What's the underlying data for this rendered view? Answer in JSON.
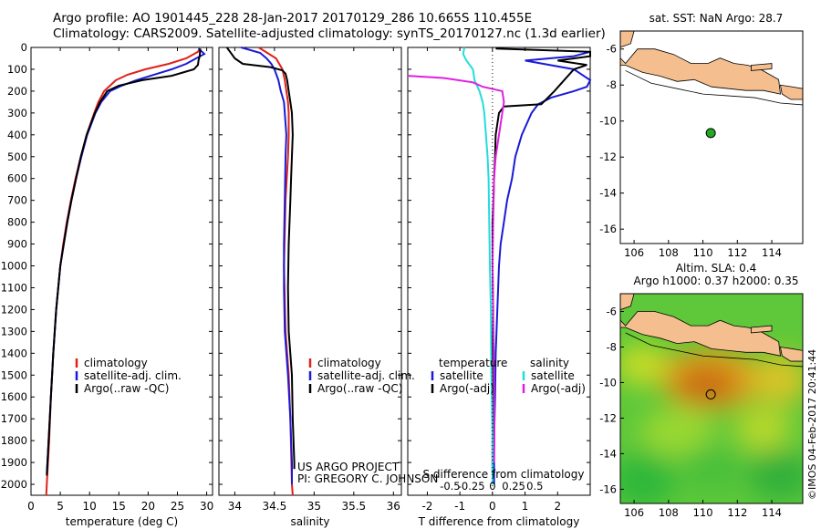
{
  "header": {
    "line1": "Argo profile: AO 1901445_228 28-Jan-2017 20170129_286 10.665S 110.455E",
    "line2": "Climatology: CARS2009. Satellite-adjusted climatology: synTS_20170127.nc (1.3d earlier)"
  },
  "watermark": "©IMOS 04-Feb-2017 20:41:44",
  "colors": {
    "climatology": "#e0201a",
    "satellite": "#1a1ad8",
    "argo": "#000000",
    "sal_sat": "#22dddd",
    "sal_argo": "#e020e0",
    "land": "#f5be8e"
  },
  "chart_data": [
    {
      "type": "line",
      "id": "temperature",
      "xlabel": "temperature (deg C)",
      "xlim": [
        0,
        31
      ],
      "ylim": [
        2050,
        0
      ],
      "x_ticks": [
        0,
        5,
        10,
        15,
        20,
        25,
        30
      ],
      "y_ticks": [
        0,
        100,
        200,
        300,
        400,
        500,
        600,
        700,
        800,
        900,
        1000,
        1100,
        1200,
        1300,
        1400,
        1500,
        1600,
        1700,
        1800,
        1900,
        2000
      ],
      "legend": [
        "climatology",
        "satellite-adj. clim.",
        "Argo(..raw -QC)"
      ],
      "series": [
        {
          "name": "climatology",
          "color": "#e0201a",
          "depth": [
            5,
            20,
            50,
            75,
            100,
            125,
            150,
            200,
            250,
            300,
            400,
            500,
            600,
            700,
            800,
            900,
            1000,
            1200,
            1400,
            1600,
            1800,
            2000,
            2050
          ],
          "values": [
            28.8,
            28.5,
            26.5,
            23.5,
            19.5,
            16.5,
            14.5,
            12.5,
            11.5,
            10.8,
            9.5,
            8.5,
            7.6,
            6.8,
            6.1,
            5.5,
            5.0,
            4.3,
            3.8,
            3.4,
            3.1,
            2.7,
            2.6
          ]
        },
        {
          "name": "satellite-adj. clim.",
          "color": "#1a1ad8",
          "depth": [
            5,
            30,
            50,
            75,
            100,
            125,
            150,
            175,
            200,
            250,
            300,
            400,
            500,
            600,
            700,
            800,
            900,
            1000,
            1200,
            1400,
            1600,
            1800,
            1950
          ],
          "values": [
            28.6,
            29.6,
            28.2,
            26.5,
            24.0,
            21.0,
            18.0,
            15.5,
            13.5,
            12.0,
            11.0,
            9.6,
            8.6,
            7.7,
            6.9,
            6.2,
            5.6,
            5.0,
            4.3,
            3.8,
            3.4,
            3.0,
            2.7
          ]
        },
        {
          "name": "Argo(..raw -QC)",
          "color": "#000000",
          "depth": [
            5,
            40,
            60,
            80,
            100,
            130,
            150,
            175,
            200,
            250,
            300,
            400,
            500,
            600,
            700,
            800,
            900,
            1000,
            1200,
            1400,
            1600,
            1800,
            1960
          ],
          "values": [
            28.9,
            28.8,
            28.6,
            28.5,
            27.8,
            24.0,
            19.0,
            15.0,
            13.0,
            11.8,
            10.9,
            9.5,
            8.5,
            7.7,
            6.9,
            6.2,
            5.6,
            5.0,
            4.3,
            3.8,
            3.4,
            3.0,
            2.7
          ]
        }
      ]
    },
    {
      "type": "line",
      "id": "salinity",
      "xlabel": "salinity",
      "xlim": [
        33.8,
        36.1
      ],
      "ylim": [
        2050,
        0
      ],
      "x_ticks": [
        34,
        34.5,
        35,
        35.5,
        36
      ],
      "legend": [
        "climatology",
        "satellite-adj. clim.",
        "Argo(..raw -QC)"
      ],
      "annotation": [
        "US ARGO PROJECT",
        "PI: GREGORY C. JOHNSON"
      ],
      "series": [
        {
          "name": "climatology",
          "color": "#e0201a",
          "depth": [
            0,
            50,
            100,
            150,
            200,
            250,
            300,
            400,
            500,
            700,
            1000,
            1300,
            1500,
            1700,
            2000,
            2050
          ],
          "values": [
            34.3,
            34.52,
            34.6,
            34.63,
            34.65,
            34.67,
            34.68,
            34.68,
            34.67,
            34.64,
            34.62,
            34.64,
            34.68,
            34.7,
            34.72,
            34.73
          ]
        },
        {
          "name": "satellite-adj. clim.",
          "color": "#1a1ad8",
          "depth": [
            0,
            25,
            50,
            75,
            100,
            150,
            200,
            250,
            300,
            400,
            500,
            700,
            900,
            1100,
            1300,
            1500,
            1700,
            1900,
            2000
          ],
          "values": [
            34.08,
            34.32,
            34.4,
            34.46,
            34.5,
            34.55,
            34.58,
            34.62,
            34.63,
            34.65,
            34.64,
            34.63,
            34.62,
            34.62,
            34.63,
            34.67,
            34.7,
            34.72,
            34.72
          ]
        },
        {
          "name": "Argo(..raw -QC)",
          "color": "#000000",
          "depth": [
            0,
            50,
            75,
            90,
            105,
            120,
            150,
            200,
            250,
            300,
            400,
            500,
            600,
            700,
            900,
            1100,
            1300,
            1500,
            1700,
            1900,
            1930
          ],
          "values": [
            33.9,
            34.0,
            34.1,
            34.45,
            34.6,
            34.64,
            34.66,
            34.68,
            34.7,
            34.72,
            34.73,
            34.72,
            34.71,
            34.7,
            34.68,
            34.67,
            34.68,
            34.72,
            34.73,
            34.75,
            34.75
          ]
        }
      ]
    },
    {
      "type": "line",
      "id": "difference",
      "xlabel": "T difference from climatology",
      "xlabel_top": "S difference from climatology",
      "xlim": [
        -2.6,
        3.0
      ],
      "ylim": [
        2050,
        0
      ],
      "x_ticks": [
        -2,
        -1,
        0,
        1,
        2
      ],
      "x_ticks_salinity": [
        "-0.5",
        "-0.25",
        "0",
        "0.25",
        "0.5"
      ],
      "legend_temperature": {
        "title": "temperature",
        "items": [
          "satellite",
          "Argo(-adj)"
        ]
      },
      "legend_salinity": {
        "title": "salinity",
        "items": [
          "satellite",
          "Argo(-adj)"
        ]
      },
      "series": [
        {
          "name": "T satellite",
          "color": "#1a1ad8",
          "depth": [
            20,
            40,
            60,
            100,
            150,
            180,
            200,
            230,
            260,
            300,
            400,
            500,
            600,
            700,
            800,
            900,
            1000,
            1200,
            1400,
            1600,
            1800,
            2000
          ],
          "values": [
            3.0,
            2.5,
            1.0,
            2.5,
            3.0,
            2.9,
            2.5,
            1.8,
            1.4,
            1.2,
            0.9,
            0.7,
            0.6,
            0.45,
            0.35,
            0.25,
            0.2,
            0.15,
            0.1,
            0.08,
            0.05,
            0.05
          ]
        },
        {
          "name": "T Argo(-adj)",
          "color": "#000000",
          "depth": [
            5,
            20,
            40,
            60,
            80,
            100,
            150,
            200,
            260,
            270,
            300,
            400,
            500,
            600,
            700,
            800,
            1000,
            1200,
            1400,
            1600,
            1800,
            1950
          ],
          "values": [
            0.1,
            3.0,
            3.0,
            2.0,
            2.9,
            2.5,
            2.2,
            1.9,
            1.5,
            0.35,
            0.2,
            0.1,
            0.08,
            0.05,
            0.03,
            0.0,
            0.0,
            0.02,
            0.0,
            0.02,
            0.0,
            0.0
          ]
        },
        {
          "name": "S satellite",
          "color": "#22dddd",
          "depth": [
            0,
            30,
            60,
            100,
            150,
            200,
            250,
            300,
            400,
            500,
            600,
            800,
            1000,
            1200,
            1400,
            1600,
            1800,
            2000
          ],
          "values": [
            -0.86,
            -0.9,
            -0.8,
            -0.6,
            -0.55,
            -0.4,
            -0.3,
            -0.25,
            -0.2,
            -0.15,
            -0.12,
            -0.1,
            -0.08,
            -0.05,
            -0.04,
            -0.02,
            0.0,
            0.0
          ]
        },
        {
          "name": "S Argo(-adj)",
          "color": "#e020e0",
          "depth": [
            130,
            140,
            160,
            180,
            200,
            250,
            300,
            400,
            500,
            600,
            800,
            1000,
            1200,
            1400,
            1600,
            1800,
            1900
          ],
          "values": [
            -2.6,
            -1.5,
            -0.6,
            -0.3,
            0.3,
            0.35,
            0.3,
            0.2,
            0.1,
            0.05,
            0.02,
            0.0,
            0.02,
            0.04,
            0.05,
            0.06,
            0.05
          ]
        }
      ]
    },
    {
      "type": "scatter",
      "id": "sst_map",
      "title": "sat. SST: NaN Argo: 28.7",
      "xlim": [
        105.2,
        115.8
      ],
      "ylim": [
        -16.8,
        -5.0
      ],
      "x_ticks": [
        106,
        108,
        110,
        112,
        114
      ],
      "y_ticks": [
        -6,
        -8,
        -10,
        -12,
        -14,
        -16
      ],
      "marker": {
        "lon": 110.455,
        "lat": -10.665
      }
    },
    {
      "type": "heatmap",
      "id": "sla_map",
      "title": "Altim. SLA: 0.4",
      "subtitle": "Argo h1000: 0.37 h2000: 0.35",
      "xlim": [
        105.2,
        115.8
      ],
      "ylim": [
        -16.8,
        -5.0
      ],
      "x_ticks": [
        106,
        108,
        110,
        112,
        114
      ],
      "y_ticks": [
        -6,
        -8,
        -10,
        -12,
        -14,
        -16
      ],
      "marker": {
        "lon": 110.455,
        "lat": -10.665
      }
    }
  ]
}
